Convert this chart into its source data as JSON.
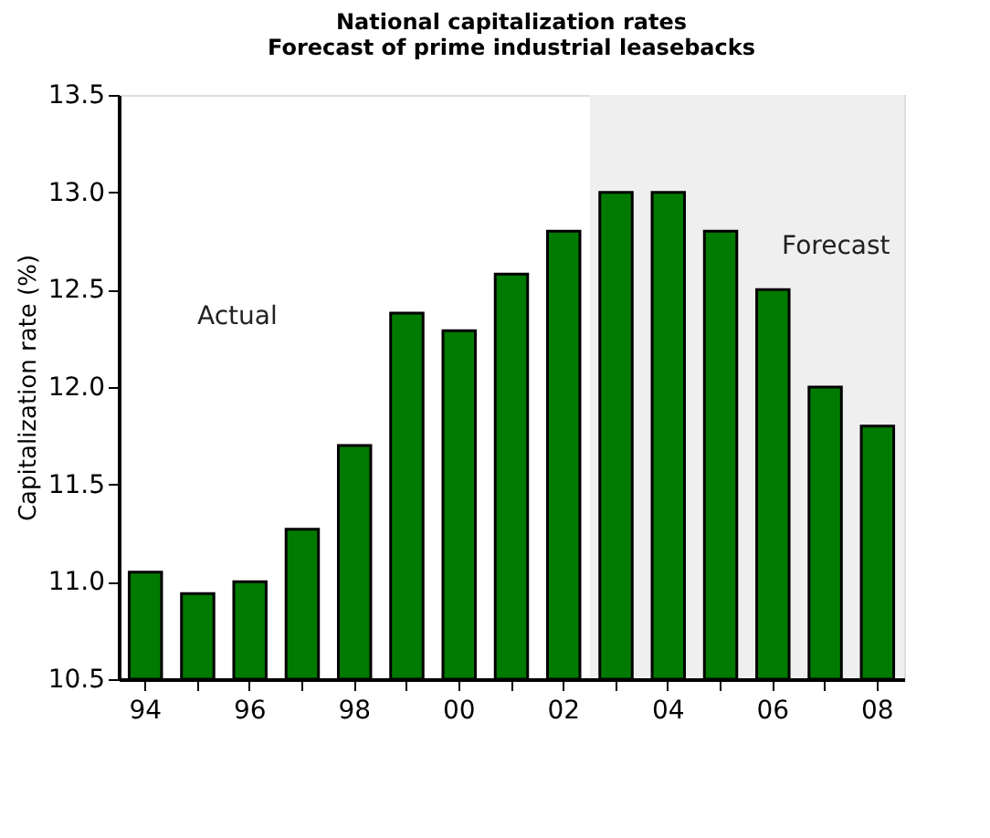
{
  "chart_data": {
    "type": "bar",
    "title": "National capitalization rates",
    "subtitle": "Forecast of prime industrial leasebacks",
    "ylabel": "Capitalization rate (%)",
    "categories": [
      "94",
      null,
      "96",
      null,
      "98",
      null,
      "00",
      null,
      "02",
      null,
      "04",
      null,
      "06",
      null,
      "08"
    ],
    "series": [
      {
        "color": "#007a00",
        "values": [
          11.05,
          10.94,
          11.0,
          11.27,
          11.7,
          12.38,
          12.29,
          12.58,
          12.8,
          13.0,
          13.0,
          12.8,
          12.5,
          12.0,
          11.8
        ]
      }
    ],
    "ylim": [
      10.5,
      13.5
    ],
    "yticks": [
      {
        "value": 10.5,
        "label": "10.5"
      },
      {
        "value": 11,
        "label": "11.0"
      },
      {
        "value": 11.5,
        "label": "11.5"
      },
      {
        "value": 12,
        "label": "12.0"
      },
      {
        "value": 12.5,
        "label": "12.5"
      },
      {
        "value": 13,
        "label": "13.0"
      },
      {
        "value": 13.5,
        "label": "13.5"
      }
    ],
    "bands": [
      {
        "axis": "x",
        "from": "02",
        "to": "08",
        "label": "Forecast",
        "color": "#efefef"
      }
    ],
    "annotations": [
      "Actual"
    ],
    "grid": false
  }
}
